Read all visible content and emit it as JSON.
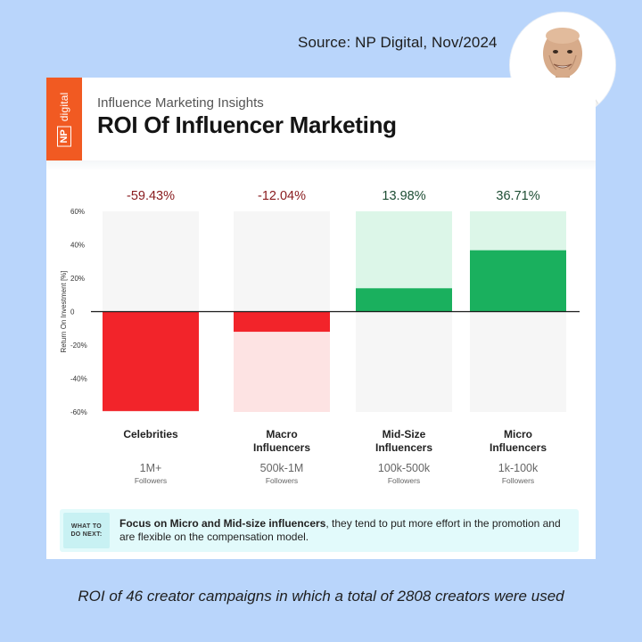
{
  "source": "Source: NP Digital, Nov/2024",
  "logo": {
    "np": "NP",
    "digital": "digital"
  },
  "header": {
    "eyebrow": "Influence Marketing Insights",
    "title": "ROI Of Influencer Marketing"
  },
  "chart_data": {
    "type": "bar",
    "ylabel": "Return On Investment [%]",
    "ylim": [
      -60,
      60
    ],
    "yticks": [
      60,
      40,
      20,
      0,
      -20,
      -40,
      -60
    ],
    "ytick_labels": [
      "60%",
      "40%",
      "20%",
      "0",
      "-20%",
      "-40%",
      "-60%"
    ],
    "grid": false,
    "categories": [
      {
        "name_lines": [
          "Celebrities"
        ],
        "followers": "1M+",
        "followers_label": "Followers"
      },
      {
        "name_lines": [
          "Macro",
          "Influencers"
        ],
        "followers": "500k-1M",
        "followers_label": "Followers"
      },
      {
        "name_lines": [
          "Mid-Size",
          "Influencers"
        ],
        "followers": "100k-500k",
        "followers_label": "Followers"
      },
      {
        "name_lines": [
          "Micro",
          "Influencers"
        ],
        "followers": "1k-100k",
        "followers_label": "Followers"
      }
    ],
    "values": [
      -59.43,
      -12.04,
      13.98,
      36.71
    ],
    "value_labels": [
      "-59.43%",
      "-12.04%",
      "13.98%",
      "36.71%"
    ],
    "colors": {
      "negative": "#f2242a",
      "negative_light": "#fde3e3",
      "negative_label": "#8a1d20",
      "positive": "#1ab05e",
      "positive_light": "#dcf6e8",
      "positive_label": "#1d4d33",
      "track": "#f6f6f6"
    }
  },
  "action": {
    "tag_line1": "WHAT TO",
    "tag_line2": "DO NEXT:",
    "text_bold": "Focus on Micro and Mid-size influencers",
    "text_rest": ", they tend to put more effort in the promotion and are flexible on the compensation model."
  },
  "caption": "ROI of 46 creator campaigns in which a total of 2808 creators were used",
  "colors": {
    "background": "#b9d5fb",
    "brand": "#f15a22",
    "action_bg": "#e2fafb"
  }
}
